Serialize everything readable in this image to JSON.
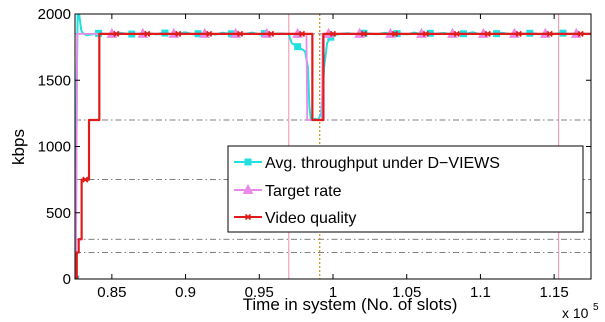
{
  "chart_data": {
    "type": "line",
    "title": "",
    "xlabel": "Time in system (No. of slots)",
    "ylabel": "kbps",
    "x_multiplier_label": "x 10",
    "x_multiplier_exponent": "5",
    "xlim": [
      0.825,
      1.175
    ],
    "ylim": [
      0,
      2000
    ],
    "xticks": [
      0.85,
      0.9,
      0.95,
      1.0,
      1.05,
      1.1,
      1.15
    ],
    "xtick_labels": [
      "0.85",
      "0.9",
      "0.95",
      "1",
      "1.05",
      "1.1",
      "1.15"
    ],
    "yticks": [
      0,
      500,
      1000,
      1500,
      2000
    ],
    "ytick_labels": [
      "0",
      "500",
      "1000",
      "1500",
      "2000"
    ],
    "grid": false,
    "legend_position": "lower-right",
    "reference_levels": [
      200,
      300,
      750,
      1200,
      1850
    ],
    "vertical_markers": [
      {
        "x": 0.97,
        "color": "#f4a0b4",
        "style": "solid"
      },
      {
        "x": 0.991,
        "color": "#d08a10",
        "style": "dotted"
      },
      {
        "x": 1.153,
        "color": "#f4a0b4",
        "style": "solid"
      }
    ],
    "series": [
      {
        "name": "Avg. throughput under D−VIEWS",
        "color": "#22e0e0",
        "marker": "square",
        "x": [
          0.8255,
          0.8262,
          0.8268,
          0.8272,
          0.8278,
          0.8285,
          0.8292,
          0.83,
          0.831,
          0.833,
          0.836,
          0.84,
          0.845,
          0.85,
          0.855,
          0.86,
          0.865,
          0.87,
          0.875,
          0.88,
          0.885,
          0.89,
          0.895,
          0.9,
          0.905,
          0.91,
          0.915,
          0.92,
          0.925,
          0.93,
          0.935,
          0.94,
          0.945,
          0.95,
          0.955,
          0.96,
          0.965,
          0.97,
          0.972,
          0.975,
          0.978,
          0.981,
          0.983,
          0.984,
          0.985,
          0.986,
          0.988,
          0.99,
          0.992,
          0.994,
          0.996,
          0.998,
          1.0,
          1.005,
          1.01,
          1.015,
          1.02,
          1.025,
          1.03,
          1.035,
          1.04,
          1.045,
          1.05,
          1.055,
          1.06,
          1.065,
          1.07,
          1.075,
          1.08,
          1.085,
          1.09,
          1.095,
          1.1,
          1.105,
          1.11,
          1.115,
          1.12,
          1.125,
          1.13,
          1.135,
          1.14,
          1.145,
          1.15,
          1.155,
          1.16,
          1.165,
          1.17,
          1.175
        ],
        "y": [
          0,
          1500,
          1990,
          1960,
          2000,
          1940,
          1880,
          1860,
          1850,
          1840,
          1845,
          1855,
          1850,
          1845,
          1860,
          1850,
          1848,
          1852,
          1855,
          1846,
          1858,
          1849,
          1851,
          1862,
          1847,
          1853,
          1856,
          1844,
          1859,
          1850,
          1852,
          1848,
          1860,
          1846,
          1855,
          1850,
          1853,
          1848,
          1780,
          1760,
          1740,
          1720,
          1600,
          1300,
          1200,
          1200,
          1210,
          1200,
          1250,
          1600,
          1780,
          1820,
          1840,
          1850,
          1855,
          1848,
          1856,
          1852,
          1847,
          1858,
          1850,
          1853,
          1846,
          1860,
          1849,
          1855,
          1851,
          1857,
          1848,
          1854,
          1850,
          1862,
          1846,
          1853,
          1850,
          1858,
          1848,
          1855,
          1851,
          1856,
          1847,
          1853,
          1850,
          1857,
          1849,
          1854,
          1852,
          1850
        ]
      },
      {
        "name": "Target rate",
        "color": "#e98ae9",
        "marker": "triangle",
        "x": [
          0.8255,
          0.826,
          0.8265,
          0.827,
          0.9,
          0.97,
          0.9705,
          0.982,
          0.9825,
          0.9925,
          0.993,
          1.175
        ],
        "y": [
          0,
          750,
          1850,
          1850,
          1850,
          1850,
          1850,
          1850,
          1200,
          1200,
          1850,
          1850
        ]
      },
      {
        "name": "Video quality",
        "color": "#e01b1b",
        "marker": "x",
        "x": [
          0.8255,
          0.8262,
          0.8262,
          0.8275,
          0.8275,
          0.8295,
          0.8295,
          0.8345,
          0.8345,
          0.8415,
          0.8415,
          0.986,
          0.986,
          0.9935,
          0.9935,
          1.175
        ],
        "y": [
          0,
          0,
          200,
          200,
          300,
          300,
          750,
          750,
          1200,
          1200,
          1850,
          1850,
          1200,
          1200,
          1850,
          1850
        ]
      }
    ]
  }
}
